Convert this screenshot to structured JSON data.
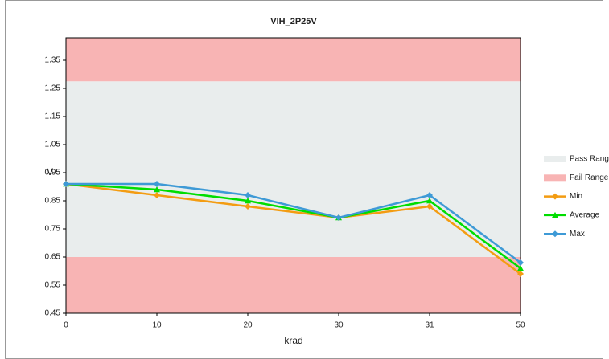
{
  "chart_data": {
    "type": "line",
    "title": "VIH_2P25V",
    "x_label": "krad",
    "y_label": "V",
    "categories": [
      "0",
      "10",
      "20",
      "30",
      "31",
      "50"
    ],
    "series": [
      {
        "name": "Min",
        "color": "#f39c12",
        "marker": "diamond",
        "values": [
          0.91,
          0.87,
          0.83,
          0.79,
          0.83,
          0.59
        ]
      },
      {
        "name": "Average",
        "color": "#00dd00",
        "marker": "triangle",
        "values": [
          0.91,
          0.89,
          0.85,
          0.79,
          0.85,
          0.61
        ]
      },
      {
        "name": "Max",
        "color": "#3e9ad6",
        "marker": "diamond",
        "values": [
          0.91,
          0.91,
          0.87,
          0.79,
          0.87,
          0.63
        ]
      }
    ],
    "bands": [
      {
        "name": "Pass Range",
        "color": "#e9eded",
        "ranges": [
          [
            0.65,
            1.275
          ]
        ]
      },
      {
        "name": "Fail Range",
        "color": "#f8b4b4",
        "ranges": [
          [
            0.45,
            0.65
          ],
          [
            1.275,
            1.43
          ]
        ]
      }
    ],
    "ylim": [
      0.45,
      1.43
    ],
    "yticks": [
      {
        "value": 0.45,
        "label": "0.45"
      },
      {
        "value": 0.55,
        "label": "0.55"
      },
      {
        "value": 0.65,
        "label": "0.65"
      },
      {
        "value": 0.75,
        "label": "0.75"
      },
      {
        "value": 0.85,
        "label": "0.85"
      },
      {
        "value": 0.95,
        "label": "0.95"
      },
      {
        "value": 1.05,
        "label": "1.05"
      },
      {
        "value": 1.15,
        "label": "1.15"
      },
      {
        "value": 1.25,
        "label": "1.25"
      },
      {
        "value": 1.35,
        "label": "1.35"
      }
    ],
    "legend": "right",
    "grid": false
  }
}
